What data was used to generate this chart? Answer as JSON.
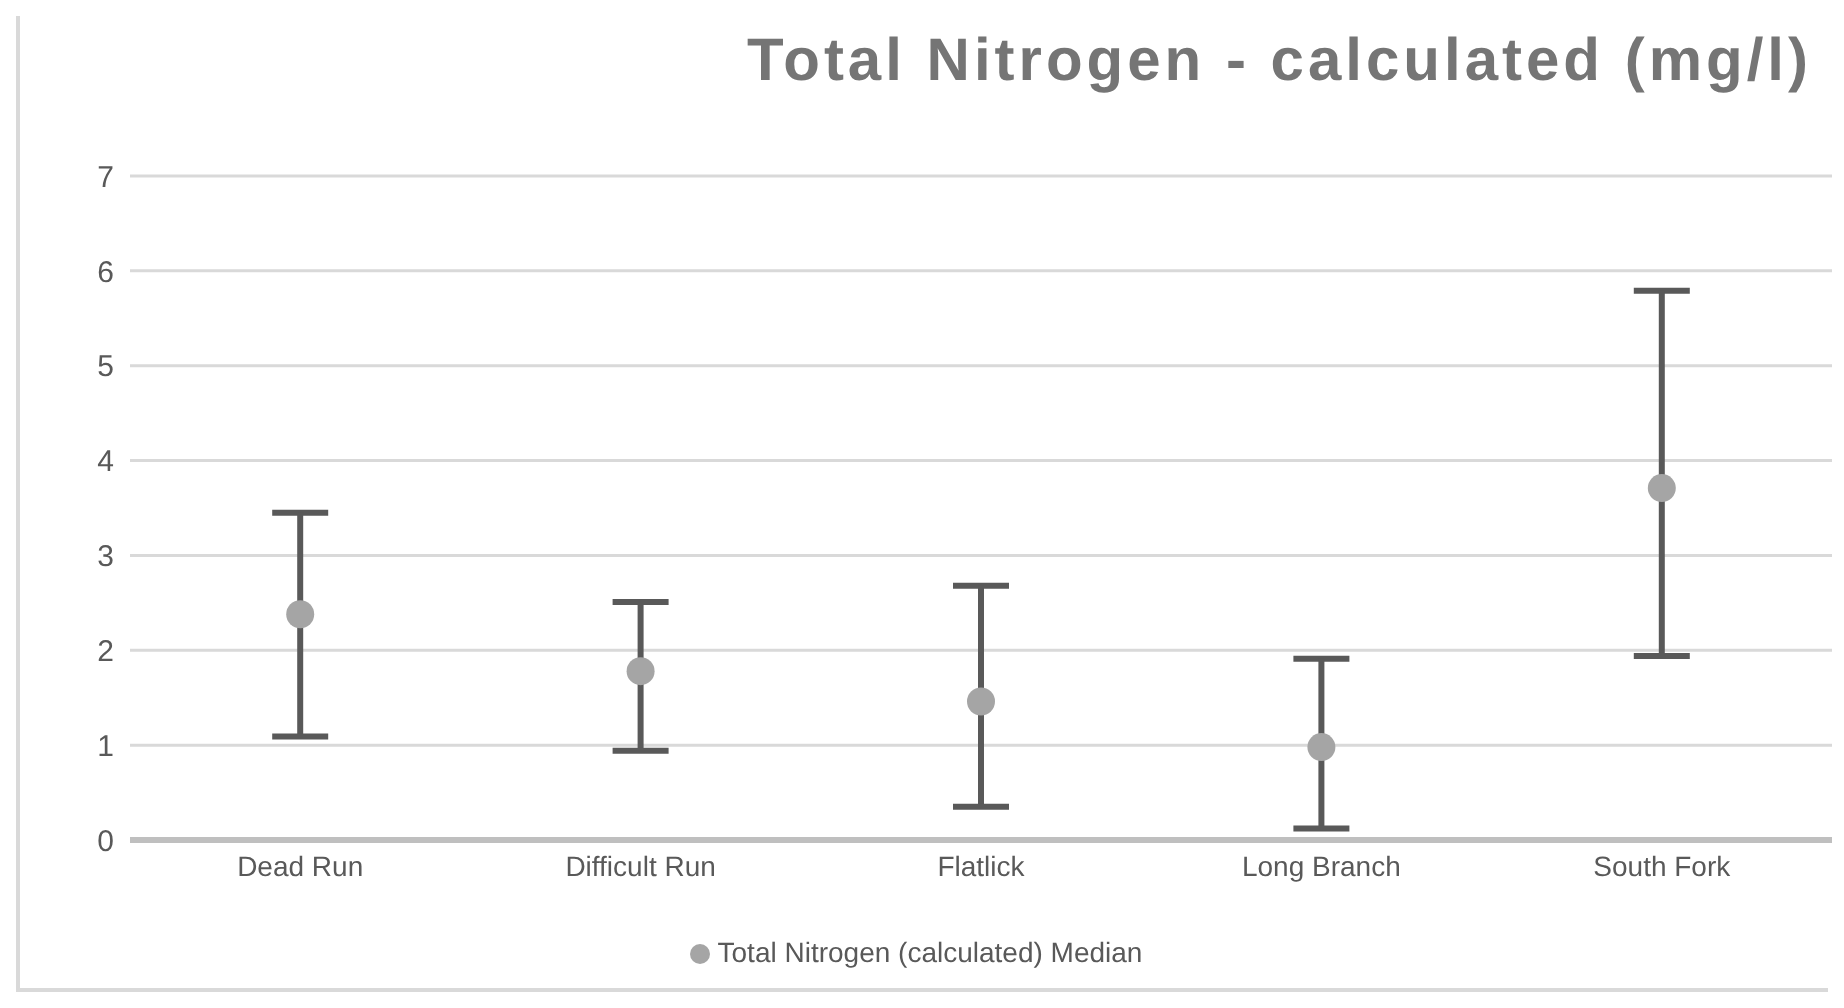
{
  "chart_data": {
    "type": "scatter",
    "title": "Total Nitrogen - calculated (mg/l)",
    "categories": [
      "Dead Run",
      "Difficult Run",
      "Flatlick",
      "Long Branch",
      "South Fork"
    ],
    "series": [
      {
        "name": "Total Nitrogen (calculated) Median",
        "color": "#a5a5a5",
        "values": [
          2.38,
          1.78,
          1.46,
          0.98,
          3.71
        ],
        "errors": [
          [
            1.09,
            3.45
          ],
          [
            0.94,
            2.51
          ],
          [
            0.35,
            2.68
          ],
          [
            0.12,
            1.91
          ],
          [
            1.94,
            5.79
          ]
        ]
      }
    ],
    "ylim": [
      0,
      7
    ],
    "yticks": [
      0,
      1,
      2,
      3,
      4,
      5,
      6,
      7
    ],
    "grid": "y",
    "legend": "bottom",
    "marker": "circle"
  }
}
